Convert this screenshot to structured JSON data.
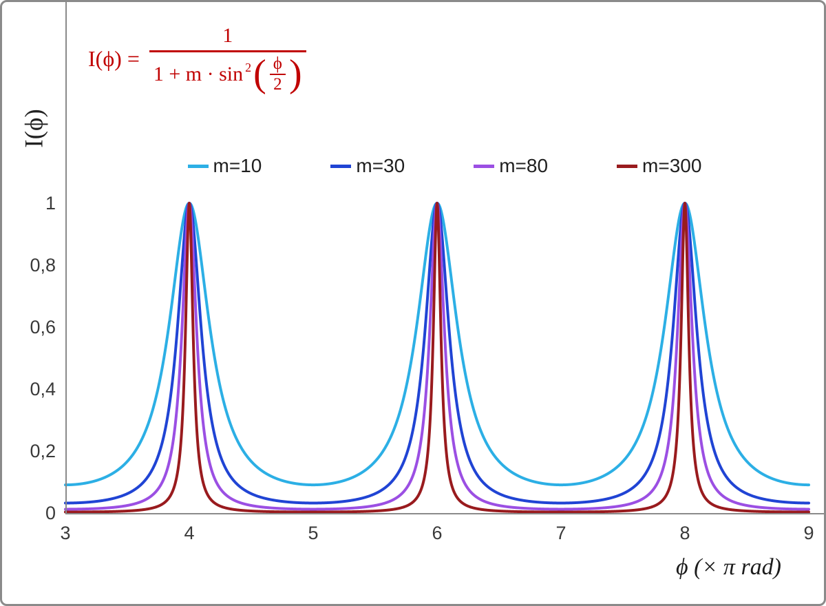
{
  "frame": {
    "background": "#ffffff",
    "border_color": "#8a8a8a"
  },
  "formula": {
    "lhs": "I(ϕ) =",
    "numerator": "1",
    "den_text": "1 + m · sin",
    "den_exp": "2",
    "open_paren": "(",
    "close_paren": ")",
    "inner_num": "ϕ",
    "inner_den": "2",
    "color": "#C00000"
  },
  "axes": {
    "line_color": "#8a8a8a",
    "tick_color": "#3a3a3a"
  },
  "chart_data": {
    "type": "line",
    "function": "I(phi) = 1 / (1 + m * sin^2(phi/2))",
    "x_unit": "pi rad",
    "x_range": [
      3,
      9
    ],
    "y_range": [
      0,
      1
    ],
    "x_ticks": [
      "3",
      "4",
      "5",
      "6",
      "7",
      "8",
      "9"
    ],
    "y_ticks": [
      "1",
      "0,8",
      "0,6",
      "0,4",
      "0,2",
      "0"
    ],
    "xlabel": "ϕ  (× π rad)",
    "ylabel": "I(ϕ)",
    "peaks_at_x": [
      4,
      6,
      8
    ],
    "peak_value": 1,
    "grid": false,
    "legend_position": "top-center",
    "series": [
      {
        "name": "m=10",
        "m": 10,
        "color": "#2CAFE5",
        "min_value": 0.0909
      },
      {
        "name": "m=30",
        "m": 30,
        "color": "#2044D4",
        "min_value": 0.0323
      },
      {
        "name": "m=80",
        "m": 80,
        "color": "#9B4FE3",
        "min_value": 0.0123
      },
      {
        "name": "m=300",
        "m": 300,
        "color": "#991B1E",
        "min_value": 0.0033
      }
    ]
  }
}
